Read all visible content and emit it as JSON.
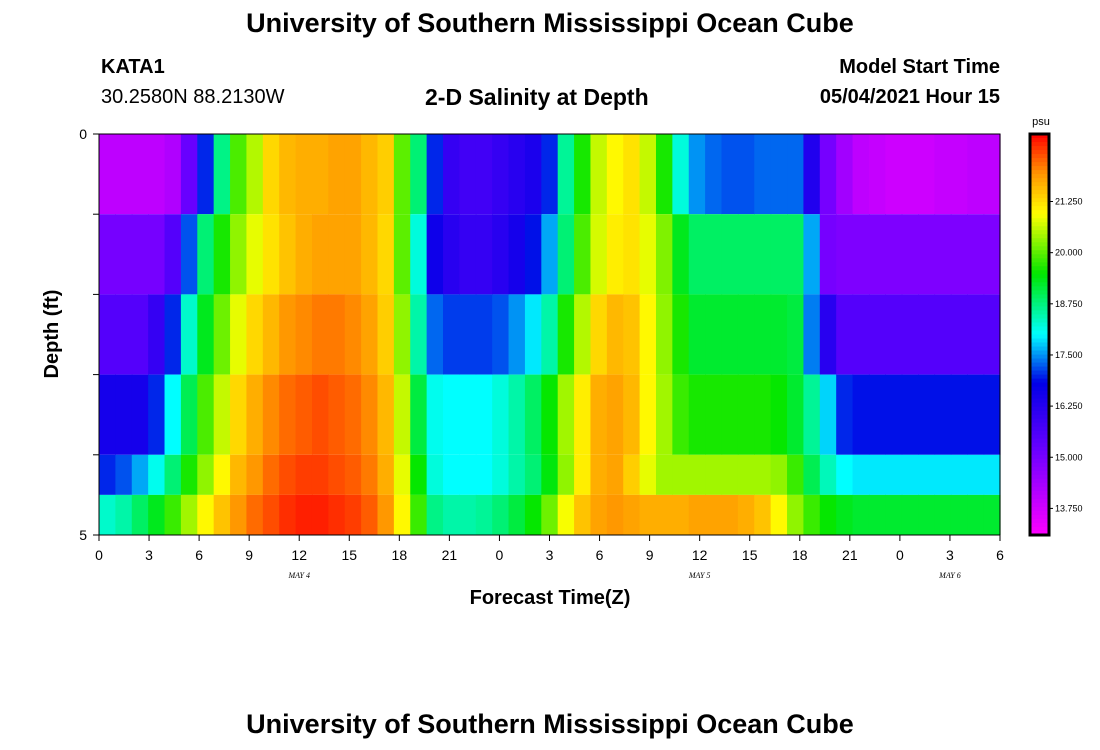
{
  "header": {
    "title": "University of Southern Mississippi Ocean Cube",
    "station": "KATA1",
    "coords": "30.2580N  88.2130W",
    "subtitle": "2-D Salinity at Depth",
    "model_label": "Model Start Time",
    "model_time": "05/04/2021 Hour 15"
  },
  "footer": {
    "title": "University of Southern Mississippi Ocean Cube"
  },
  "chart_data": {
    "type": "heatmap",
    "title": "2-D Salinity at Depth",
    "xlabel": "Forecast Time(Z)",
    "ylabel": "Depth (ft)",
    "x_tick_labels": [
      "0",
      "3",
      "6",
      "9",
      "12",
      "15",
      "18",
      "21",
      "0",
      "3",
      "6",
      "9",
      "12",
      "15",
      "18",
      "21",
      "0",
      "3",
      "6"
    ],
    "date_labels": [
      {
        "label": "MAY 4",
        "hour": 12
      },
      {
        "label": "MAY 5",
        "hour": 36
      },
      {
        "label": "MAY 6",
        "hour": 51
      }
    ],
    "y_tick_labels": [
      "0",
      "5"
    ],
    "xlim": [
      0,
      54
    ],
    "ylim": [
      0,
      5
    ],
    "colorbar": {
      "unit": "psu",
      "min": 13.1,
      "max": 22.9,
      "ticks": [
        "13.750",
        "15.000",
        "16.250",
        "17.500",
        "18.750",
        "20.000",
        "21.250"
      ],
      "tick_values": [
        13.75,
        15.0,
        16.25,
        17.5,
        18.75,
        20.0,
        21.25
      ]
    },
    "depth_layers": [
      0.0,
      1.0,
      2.0,
      3.0,
      4.0,
      4.5
    ],
    "rows": [
      {
        "depth": 0.0,
        "values": [
          14.0,
          14.0,
          14.0,
          14.0,
          14.2,
          15.2,
          17.0,
          18.7,
          19.9,
          20.5,
          21.3,
          21.6,
          21.7,
          21.7,
          21.8,
          21.8,
          21.6,
          21.4,
          20.0,
          18.8,
          17.0,
          16.0,
          15.8,
          15.8,
          16.0,
          16.2,
          16.4,
          17.0,
          18.6,
          19.6,
          20.6,
          21.0,
          21.2,
          20.6,
          19.6,
          18.2,
          17.5,
          17.3,
          17.2,
          17.2,
          17.3,
          17.3,
          17.3,
          16.3,
          15.0,
          14.4,
          14.0,
          13.9,
          13.8,
          13.8,
          13.8,
          13.9,
          13.9,
          14.0,
          14.0
        ]
      },
      {
        "depth": 1.0,
        "values": [
          15.0,
          15.0,
          15.0,
          15.0,
          15.5,
          17.2,
          18.8,
          19.6,
          20.3,
          20.8,
          21.2,
          21.5,
          21.7,
          21.8,
          21.8,
          21.8,
          21.6,
          21.3,
          20.0,
          18.2,
          16.6,
          16.2,
          16.0,
          16.0,
          16.2,
          16.5,
          16.9,
          17.6,
          18.8,
          19.9,
          20.7,
          21.1,
          21.2,
          20.8,
          20.2,
          19.3,
          18.9,
          18.9,
          18.9,
          18.9,
          18.9,
          18.9,
          18.9,
          17.6,
          15.0,
          14.9,
          14.9,
          14.9,
          14.9,
          14.9,
          14.9,
          14.9,
          14.9,
          14.9,
          14.9
        ]
      },
      {
        "depth": 2.0,
        "values": [
          15.5,
          15.5,
          15.5,
          16.0,
          17.0,
          18.3,
          19.3,
          20.1,
          20.8,
          21.3,
          21.6,
          21.9,
          22.0,
          22.1,
          22.1,
          22.0,
          21.8,
          21.4,
          20.3,
          18.5,
          17.3,
          17.1,
          17.1,
          17.1,
          17.2,
          17.5,
          17.9,
          18.5,
          19.6,
          20.5,
          21.3,
          21.6,
          21.5,
          21.0,
          20.3,
          19.6,
          19.2,
          19.2,
          19.2,
          19.2,
          19.2,
          19.2,
          19.1,
          17.4,
          16.2,
          15.5,
          15.5,
          15.5,
          15.5,
          15.5,
          15.5,
          15.5,
          15.5,
          15.5,
          15.5
        ]
      },
      {
        "depth": 3.0,
        "values": [
          16.5,
          16.5,
          16.5,
          17.0,
          18.0,
          19.0,
          19.9,
          20.6,
          21.3,
          21.7,
          22.0,
          22.2,
          22.3,
          22.4,
          22.3,
          22.2,
          22.0,
          21.6,
          20.6,
          19.1,
          18.1,
          18.0,
          18.0,
          18.0,
          18.2,
          18.5,
          18.9,
          19.5,
          20.4,
          21.1,
          21.7,
          21.8,
          21.6,
          21.0,
          20.4,
          19.8,
          19.6,
          19.6,
          19.6,
          19.6,
          19.6,
          19.5,
          19.2,
          18.6,
          17.8,
          17.0,
          16.9,
          16.9,
          16.9,
          16.9,
          16.9,
          16.9,
          16.9,
          16.9,
          16.9
        ]
      },
      {
        "depth": 4.0,
        "values": [
          17.0,
          17.2,
          17.6,
          18.1,
          18.8,
          19.6,
          20.3,
          21.0,
          21.6,
          21.9,
          22.2,
          22.4,
          22.5,
          22.5,
          22.4,
          22.3,
          22.1,
          21.7,
          20.8,
          19.5,
          18.2,
          18.0,
          18.0,
          18.0,
          18.2,
          18.5,
          18.8,
          19.4,
          20.3,
          21.1,
          21.7,
          21.8,
          21.4,
          20.8,
          20.4,
          20.4,
          20.4,
          20.4,
          20.4,
          20.4,
          20.4,
          20.3,
          19.8,
          19.0,
          18.4,
          18.0,
          17.9,
          17.9,
          17.9,
          17.9,
          17.9,
          17.9,
          17.9,
          17.9,
          17.9
        ]
      },
      {
        "depth": 4.5,
        "values": [
          18.3,
          18.5,
          18.9,
          19.3,
          19.8,
          20.4,
          21.0,
          21.5,
          21.9,
          22.2,
          22.4,
          22.6,
          22.7,
          22.7,
          22.6,
          22.5,
          22.3,
          21.9,
          21.0,
          19.8,
          18.7,
          18.5,
          18.5,
          18.6,
          18.8,
          19.1,
          19.5,
          20.1,
          20.9,
          21.5,
          21.8,
          21.9,
          21.8,
          21.7,
          21.7,
          21.7,
          21.8,
          21.8,
          21.8,
          21.7,
          21.5,
          21.0,
          20.3,
          19.8,
          19.5,
          19.3,
          19.2,
          19.2,
          19.2,
          19.2,
          19.2,
          19.2,
          19.2,
          19.2,
          19.2
        ]
      }
    ]
  }
}
